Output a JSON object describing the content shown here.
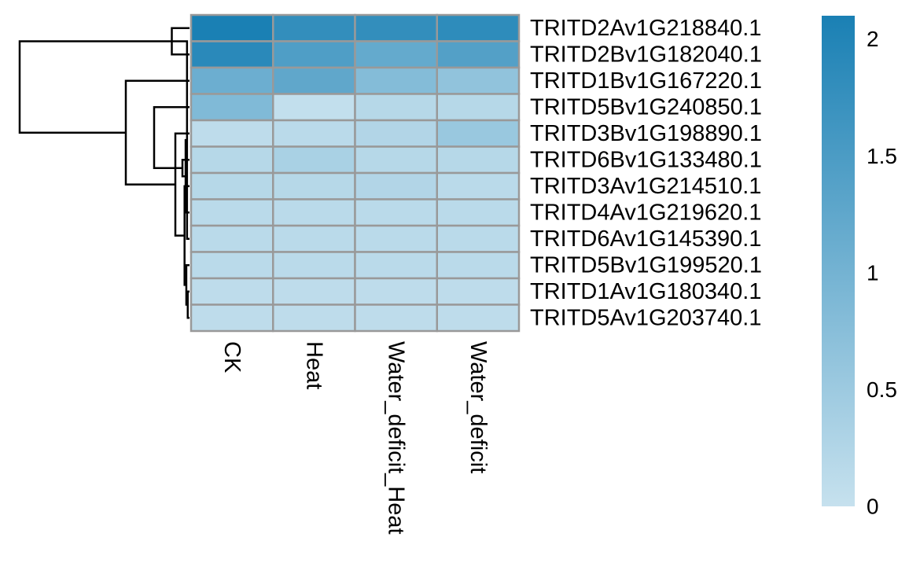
{
  "chart_data": {
    "type": "heatmap",
    "rows": [
      "TRITD2Av1G218840.1",
      "TRITD2Bv1G182040.1",
      "TRITD1Bv1G167220.1",
      "TRITD5Bv1G240850.1",
      "TRITD3Bv1G198890.1",
      "TRITD6Bv1G133480.1",
      "TRITD3Av1G214510.1",
      "TRITD4Av1G219620.1",
      "TRITD6Av1G145390.1",
      "TRITD5Bv1G199520.1",
      "TRITD1Av1G180340.1",
      "TRITD5Av1G203740.1"
    ],
    "columns": [
      "CK",
      "Heat",
      "Water_deficit_Heat",
      "Water_deficit"
    ],
    "values": [
      [
        2.1,
        1.8,
        1.8,
        1.85
      ],
      [
        1.9,
        1.45,
        1.2,
        1.4
      ],
      [
        1.1,
        1.25,
        0.8,
        0.65
      ],
      [
        0.85,
        0.05,
        0.2,
        0.2
      ],
      [
        0.1,
        0.15,
        0.25,
        0.55
      ],
      [
        0.2,
        0.35,
        0.2,
        0.2
      ],
      [
        0.2,
        0.2,
        0.25,
        0.15
      ],
      [
        0.15,
        0.15,
        0.15,
        0.15
      ],
      [
        0.15,
        0.15,
        0.15,
        0.15
      ],
      [
        0.15,
        0.15,
        0.15,
        0.15
      ],
      [
        0.1,
        0.1,
        0.1,
        0.1
      ],
      [
        0.1,
        0.1,
        0.1,
        0.1
      ]
    ],
    "color_scale": {
      "min": 0,
      "max": 2.1,
      "low_color": "#c6e1ee",
      "high_color": "#1a80b4",
      "ticks": [
        {
          "value": 0,
          "label": "0"
        },
        {
          "value": 0.5,
          "label": "0.5"
        },
        {
          "value": 1,
          "label": "1"
        },
        {
          "value": 1.5,
          "label": "1.5"
        },
        {
          "value": 2,
          "label": "2"
        }
      ]
    },
    "cell_border_color": "#999999",
    "dendrogram": {
      "side": "left",
      "merges": [
        [
          0,
          1
        ],
        [
          10,
          11
        ],
        [
          8,
          12
        ],
        [
          9,
          13
        ],
        [
          7,
          14
        ],
        [
          6,
          15
        ],
        [
          5,
          16
        ],
        [
          4,
          17
        ],
        [
          3,
          18
        ],
        [
          2,
          19
        ],
        [
          -1,
          20
        ]
      ],
      "heights": [
        0.5,
        0.05,
        0.07,
        0.09,
        0.11,
        0.14,
        0.2,
        0.4,
        1.0,
        1.8,
        4.8
      ]
    }
  }
}
